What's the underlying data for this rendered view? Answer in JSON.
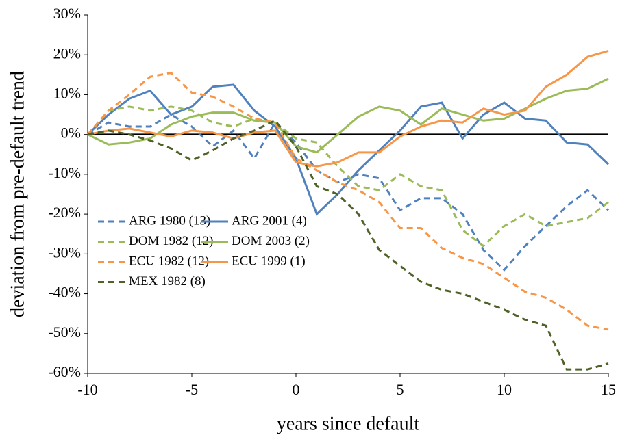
{
  "chart_data": {
    "type": "line",
    "x_label": "years since default",
    "y_label": "deviation from pre-default trend",
    "x": [
      -10,
      -9,
      -8,
      -7,
      -6,
      -5,
      -4,
      -3,
      -2,
      -1,
      0,
      1,
      2,
      3,
      4,
      5,
      6,
      7,
      8,
      9,
      10,
      11,
      12,
      13,
      14,
      15
    ],
    "xlim": [
      -10,
      15
    ],
    "xticks": [
      -10,
      -5,
      0,
      5,
      10,
      15
    ],
    "ylim": [
      -60,
      30
    ],
    "yticks": [
      {
        "value": -60,
        "label": "-60%"
      },
      {
        "value": -50,
        "label": "-50%"
      },
      {
        "value": -40,
        "label": "-40%"
      },
      {
        "value": -30,
        "label": "-30%"
      },
      {
        "value": -20,
        "label": "-20%"
      },
      {
        "value": -10,
        "label": "-10%"
      },
      {
        "value": 0,
        "label": "0%"
      },
      {
        "value": 10,
        "label": "10%"
      },
      {
        "value": 20,
        "label": "20%"
      },
      {
        "value": 30,
        "label": "30%"
      }
    ],
    "zero_line": true,
    "legend_position": "lower left",
    "series": [
      {
        "name": "ARG 1980 (13)",
        "color": "#4f81bd",
        "style": "dashed",
        "values": [
          0,
          3,
          2,
          2,
          5,
          2,
          -3,
          1,
          -6,
          3,
          -2,
          -9,
          -12,
          -10,
          -11,
          -19,
          -16,
          -16,
          -20,
          -29,
          -34,
          -28,
          -23,
          -18,
          -14,
          -19
        ]
      },
      {
        "name": "ARG 2001 (4)",
        "color": "#4f81bd",
        "style": "solid",
        "values": [
          0,
          5,
          9,
          11,
          5,
          7,
          12,
          12.5,
          6,
          2,
          -6,
          -20,
          -15,
          -9,
          -4,
          1,
          7,
          8,
          -1,
          5,
          8,
          4,
          3.5,
          -2,
          -2.5,
          -7.5
        ]
      },
      {
        "name": "DOM 1982 (12)",
        "color": "#9bbb59",
        "style": "dashed",
        "values": [
          0,
          6,
          7,
          6,
          7,
          6,
          3,
          2,
          4,
          3,
          -1,
          -2,
          -8,
          -13,
          -14,
          -10,
          -13,
          -14,
          -24,
          -28,
          -23,
          -20,
          -23,
          -22,
          -21,
          -17
        ]
      },
      {
        "name": "DOM 2003 (2)",
        "color": "#9bbb59",
        "style": "solid",
        "values": [
          0,
          -2.5,
          -2,
          -1,
          2.5,
          4.5,
          5.5,
          5.5,
          3.5,
          3,
          -3,
          -4.5,
          0,
          4.5,
          7,
          6,
          2.5,
          6.5,
          5,
          3.5,
          4,
          6.5,
          9,
          11,
          11.5,
          14
        ]
      },
      {
        "name": "ECU 1982 (12)",
        "color": "#f79646",
        "style": "dashed",
        "values": [
          0,
          6,
          10,
          14.5,
          15.5,
          10.5,
          9.5,
          7,
          4,
          3,
          -6,
          -9,
          -12,
          -14,
          -17,
          -23.5,
          -23.5,
          -28.5,
          -31,
          -32.5,
          -36,
          -39.5,
          -41,
          -44,
          -48,
          -49
        ]
      },
      {
        "name": "ECU 1999 (1)",
        "color": "#f79646",
        "style": "solid",
        "values": [
          0,
          1,
          1.5,
          0.5,
          -0.5,
          1,
          0.5,
          -1,
          0.5,
          1,
          -7,
          -8,
          -7,
          -4.5,
          -4.5,
          -0.5,
          2,
          3.5,
          3,
          6.5,
          5,
          6,
          12,
          15,
          19.5,
          21
        ]
      },
      {
        "name": "MEX 1982 (8)",
        "color": "#4f6228",
        "style": "dashed",
        "values": [
          0,
          1,
          0,
          -1.5,
          -3.5,
          -6.5,
          -4,
          -1,
          1,
          3.5,
          -3,
          -13,
          -15,
          -20,
          -29,
          -33,
          -37,
          -39,
          -40,
          -42,
          -44,
          -46.5,
          -48,
          -59,
          -59,
          -57.5
        ]
      }
    ]
  }
}
